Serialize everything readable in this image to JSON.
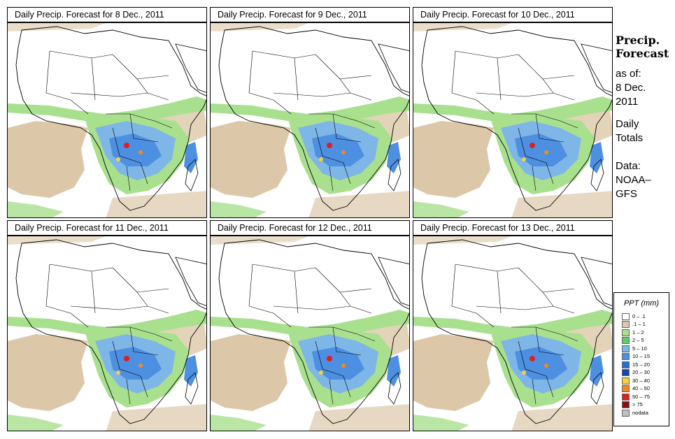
{
  "panels": [
    {
      "title": "Daily Precip. Forecast for  8 Dec., 2011"
    },
    {
      "title": "Daily Precip. Forecast for  9 Dec., 2011"
    },
    {
      "title": "Daily Precip. Forecast for  10 Dec., 2011"
    },
    {
      "title": "Daily Precip. Forecast for  11 Dec., 2011"
    },
    {
      "title": "Daily Precip. Forecast for  12 Dec., 2011"
    },
    {
      "title": "Daily Precip. Forecast for  13 Dec., 2011"
    }
  ],
  "sidebar": {
    "title_line1": "Precip.",
    "title_line2": "Forecast",
    "asof": "as of:",
    "date_line1": "8 Dec.",
    "date_line2": "2011",
    "daily_line1": "Daily",
    "daily_line2": "Totals",
    "data_line1": "Data:",
    "data_line2": "NOAA–",
    "data_line3": "GFS"
  },
  "legend": {
    "title": "PPT (mm)",
    "items": [
      {
        "label": "0 – .1",
        "color": "#ffffff"
      },
      {
        "label": ".1 – 1",
        "color": "#dcc8a8"
      },
      {
        "label": "1 – 2",
        "color": "#a8e08e"
      },
      {
        "label": "2 – 5",
        "color": "#5ccd6a"
      },
      {
        "label": "5 – 10",
        "color": "#7fb6e8"
      },
      {
        "label": "10 – 15",
        "color": "#4d8fe0"
      },
      {
        "label": "15 – 20",
        "color": "#2a6fd8"
      },
      {
        "label": "20 – 30",
        "color": "#1445b0"
      },
      {
        "label": "30 – 40",
        "color": "#f5d040"
      },
      {
        "label": "40 – 50",
        "color": "#f08a20"
      },
      {
        "label": "50 – 75",
        "color": "#e02020"
      },
      {
        "label": "> 75",
        "color": "#8a1010"
      },
      {
        "label": "nodata",
        "color": "#c0c0c0"
      }
    ]
  }
}
